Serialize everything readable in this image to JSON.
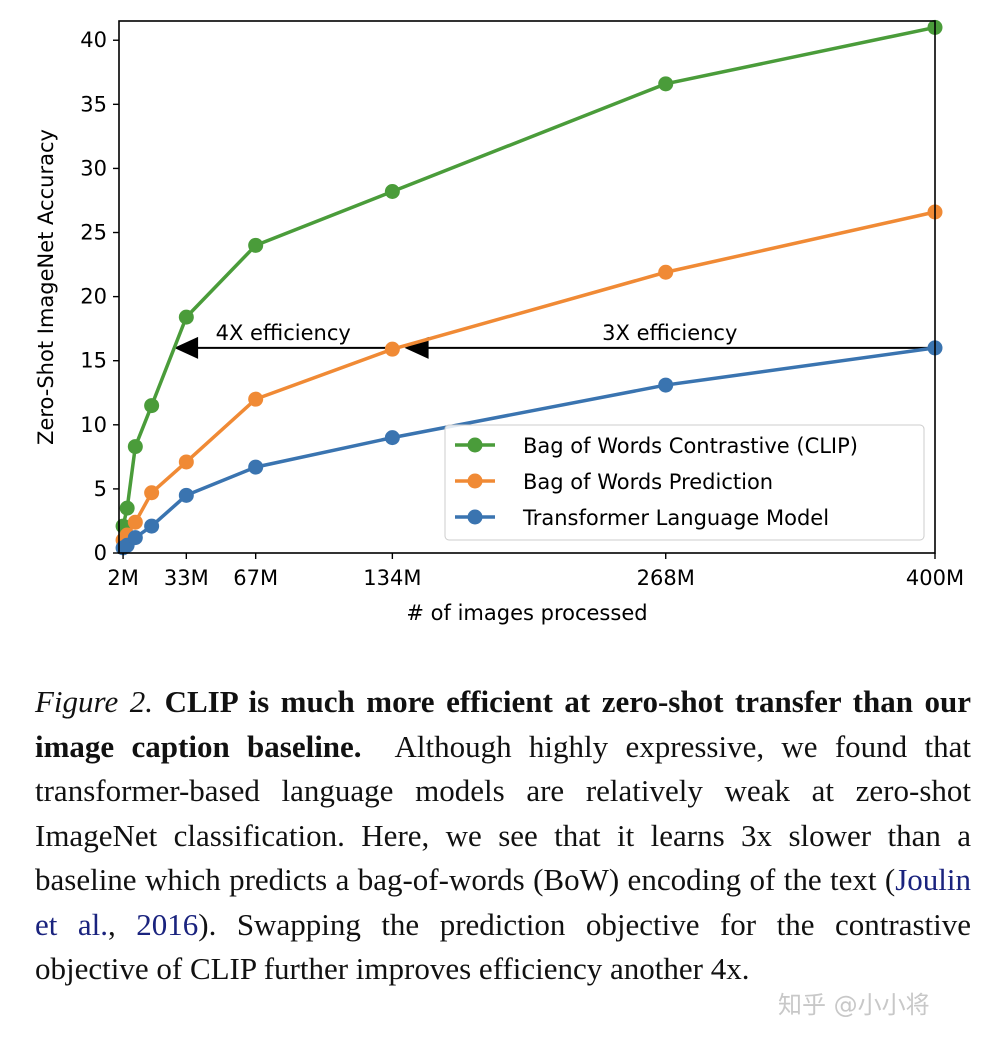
{
  "chart_data": {
    "type": "line",
    "xlabel": "# of images processed",
    "ylabel": "Zero-Shot ImageNet Accuracy",
    "x": [
      2,
      4,
      8,
      16,
      33,
      67,
      134,
      268,
      400
    ],
    "x_unit": "M images",
    "xticks": [
      2,
      33,
      67,
      134,
      268,
      400
    ],
    "xtick_labels": [
      "2M",
      "33M",
      "67M",
      "134M",
      "268M",
      "400M"
    ],
    "yticks": [
      0,
      5,
      10,
      15,
      20,
      25,
      30,
      35,
      40
    ],
    "xlim": [
      0,
      400
    ],
    "ylim": [
      0,
      41.5
    ],
    "grid": false,
    "legend_position": "lower-right",
    "series": [
      {
        "name": "Bag of Words Contrastive (CLIP)",
        "color": "#4a9c3a",
        "values": [
          2.1,
          3.5,
          8.3,
          11.5,
          18.4,
          24.0,
          28.2,
          36.6,
          41.0
        ]
      },
      {
        "name": "Bag of Words Prediction",
        "color": "#f08a35",
        "values": [
          1.0,
          1.4,
          2.4,
          4.7,
          7.1,
          12.0,
          15.9,
          21.9,
          26.6
        ]
      },
      {
        "name": "Transformer Language Model",
        "color": "#3a74b0",
        "values": [
          0.4,
          0.6,
          1.2,
          2.1,
          4.5,
          6.7,
          9.0,
          13.1,
          16.0
        ]
      }
    ],
    "annotations": [
      {
        "text": "4X efficiency",
        "arrow_from_x": 134,
        "arrow_to_x": 27,
        "y": 16
      },
      {
        "text": "3X efficiency",
        "arrow_from_x": 400,
        "arrow_to_x": 140,
        "y": 16
      }
    ]
  },
  "caption": {
    "figure_label": "Figure 2.",
    "title": "CLIP is much more efficient at zero-shot transfer than our image caption baseline.",
    "body_before_link": "Although highly expressive, we found that transformer-based language models are relatively weak at zero-shot ImageNet classification. Here, we see that it learns 3x slower than a baseline which predicts a bag-of-words (BoW) encoding of the text (",
    "link_authors": "Joulin et al.",
    "link_sep": ", ",
    "link_year": "2016",
    "body_after_link": "). Swapping the prediction objective for the contrastive objective of CLIP further improves efficiency another 4x."
  },
  "watermark": "知乎 @小小将"
}
